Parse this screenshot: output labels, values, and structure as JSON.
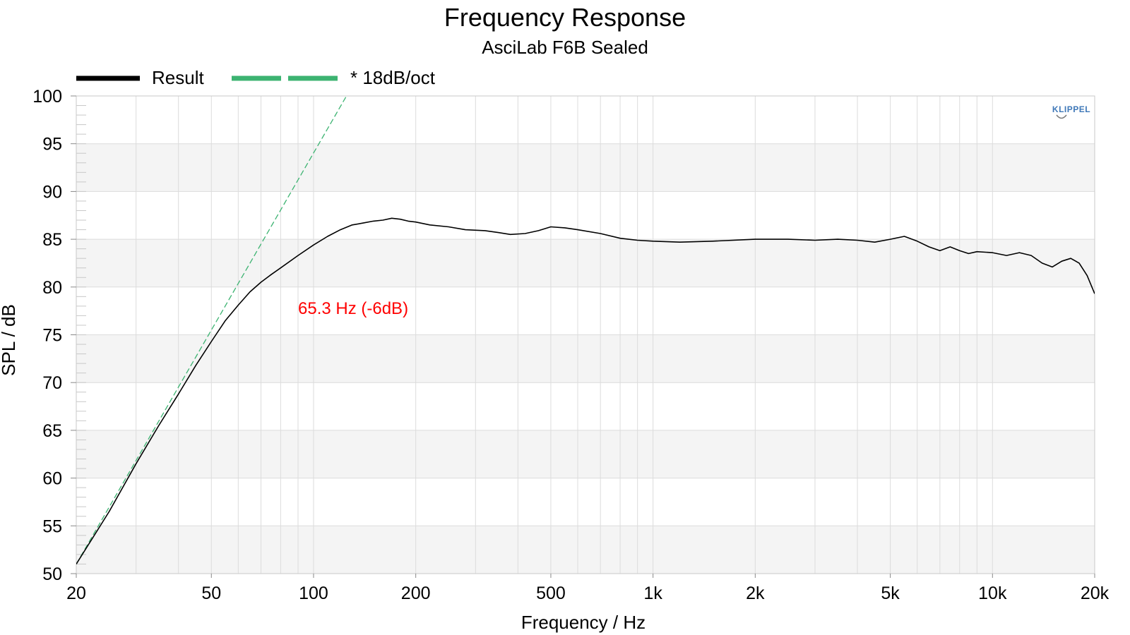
{
  "chart_data": {
    "type": "line",
    "title": "Frequency Response",
    "subtitle": "AsciLab F6B Sealed",
    "xlabel": "Frequency / Hz",
    "ylabel": "SPL / dB",
    "xscale": "log",
    "xlim": [
      20,
      20000
    ],
    "ylim": [
      50,
      100
    ],
    "x_ticks": [
      {
        "value": 20,
        "label": "20"
      },
      {
        "value": 50,
        "label": "50"
      },
      {
        "value": 100,
        "label": "100"
      },
      {
        "value": 200,
        "label": "200"
      },
      {
        "value": 500,
        "label": "500"
      },
      {
        "value": 1000,
        "label": "1k"
      },
      {
        "value": 2000,
        "label": "2k"
      },
      {
        "value": 5000,
        "label": "5k"
      },
      {
        "value": 10000,
        "label": "10k"
      },
      {
        "value": 20000,
        "label": "20k"
      }
    ],
    "y_ticks": [
      100,
      95,
      90,
      85,
      80,
      75,
      70,
      65,
      60,
      55,
      50
    ],
    "grid": true,
    "legend_position": "top-left",
    "annotation": {
      "text": "65.3 Hz (-6dB)",
      "color": "#ff0000"
    },
    "logo_text": "KLIPPEL",
    "series": [
      {
        "name": "Result",
        "color": "#000000",
        "style": "solid",
        "points": [
          [
            20,
            51.0
          ],
          [
            25,
            56.5
          ],
          [
            30,
            61.5
          ],
          [
            35,
            65.5
          ],
          [
            40,
            68.8
          ],
          [
            45,
            71.8
          ],
          [
            50,
            74.3
          ],
          [
            55,
            76.5
          ],
          [
            60,
            78.1
          ],
          [
            65,
            79.5
          ],
          [
            70,
            80.5
          ],
          [
            75,
            81.3
          ],
          [
            80,
            82.0
          ],
          [
            90,
            83.3
          ],
          [
            100,
            84.4
          ],
          [
            110,
            85.3
          ],
          [
            120,
            86.0
          ],
          [
            130,
            86.5
          ],
          [
            140,
            86.7
          ],
          [
            150,
            86.9
          ],
          [
            160,
            87.0
          ],
          [
            170,
            87.2
          ],
          [
            180,
            87.1
          ],
          [
            190,
            86.9
          ],
          [
            200,
            86.8
          ],
          [
            220,
            86.5
          ],
          [
            250,
            86.3
          ],
          [
            280,
            86.0
          ],
          [
            320,
            85.9
          ],
          [
            350,
            85.7
          ],
          [
            380,
            85.5
          ],
          [
            420,
            85.6
          ],
          [
            460,
            85.9
          ],
          [
            500,
            86.3
          ],
          [
            550,
            86.2
          ],
          [
            600,
            86.0
          ],
          [
            700,
            85.6
          ],
          [
            800,
            85.1
          ],
          [
            900,
            84.9
          ],
          [
            1000,
            84.8
          ],
          [
            1200,
            84.7
          ],
          [
            1500,
            84.8
          ],
          [
            2000,
            85.0
          ],
          [
            2500,
            85.0
          ],
          [
            3000,
            84.9
          ],
          [
            3500,
            85.0
          ],
          [
            4000,
            84.9
          ],
          [
            4500,
            84.7
          ],
          [
            5000,
            85.0
          ],
          [
            5500,
            85.3
          ],
          [
            6000,
            84.8
          ],
          [
            6500,
            84.2
          ],
          [
            7000,
            83.8
          ],
          [
            7500,
            84.2
          ],
          [
            8000,
            83.8
          ],
          [
            8500,
            83.5
          ],
          [
            9000,
            83.7
          ],
          [
            10000,
            83.6
          ],
          [
            11000,
            83.3
          ],
          [
            12000,
            83.6
          ],
          [
            13000,
            83.3
          ],
          [
            14000,
            82.5
          ],
          [
            15000,
            82.1
          ],
          [
            16000,
            82.7
          ],
          [
            17000,
            83.0
          ],
          [
            18000,
            82.5
          ],
          [
            19000,
            81.2
          ],
          [
            20000,
            79.3
          ]
        ]
      },
      {
        "name": "* 18dB/oct",
        "color": "#3cb371",
        "style": "dashed",
        "points": [
          [
            20,
            51.0
          ],
          [
            125,
            100.0
          ]
        ]
      }
    ]
  }
}
